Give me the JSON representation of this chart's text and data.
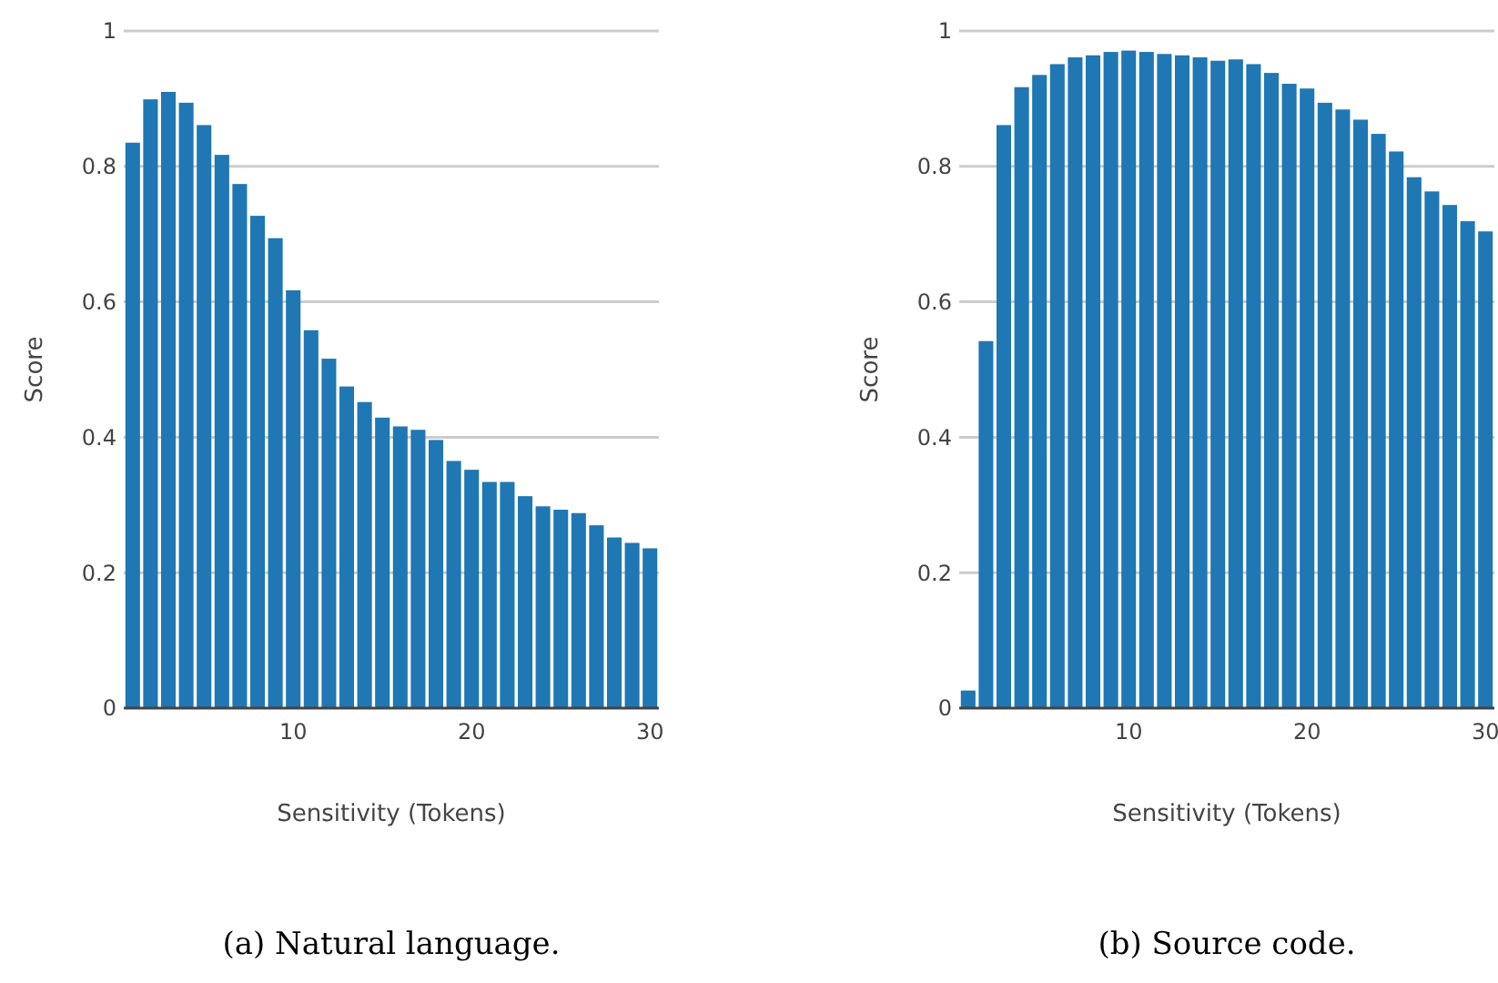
{
  "chart_data": [
    {
      "type": "bar",
      "xlabel": "Sensitivity (Tokens)",
      "ylabel": "Score",
      "x": [
        1,
        2,
        3,
        4,
        5,
        6,
        7,
        8,
        9,
        10,
        11,
        12,
        13,
        14,
        15,
        16,
        17,
        18,
        19,
        20,
        21,
        22,
        23,
        24,
        25,
        26,
        27,
        28,
        29,
        30
      ],
      "values": [
        0.835,
        0.899,
        0.91,
        0.894,
        0.861,
        0.817,
        0.774,
        0.727,
        0.694,
        0.617,
        0.558,
        0.516,
        0.475,
        0.452,
        0.429,
        0.416,
        0.411,
        0.396,
        0.365,
        0.352,
        0.334,
        0.334,
        0.313,
        0.298,
        0.293,
        0.288,
        0.27,
        0.252,
        0.244,
        0.236
      ],
      "color": "#1f77b4",
      "xlim": [
        0.5,
        30.5
      ],
      "xticks": [
        10,
        20,
        30
      ],
      "ylim": [
        0,
        1
      ],
      "yticks": [
        0,
        0.2,
        0.4,
        0.6,
        0.8,
        1
      ],
      "grid": "y",
      "annotations": [
        "(a) Natural language."
      ]
    },
    {
      "type": "bar",
      "xlabel": "Sensitivity (Tokens)",
      "ylabel": "Score",
      "x": [
        1,
        2,
        3,
        4,
        5,
        6,
        7,
        8,
        9,
        10,
        11,
        12,
        13,
        14,
        15,
        16,
        17,
        18,
        19,
        20,
        21,
        22,
        23,
        24,
        25,
        26,
        27,
        28,
        29,
        30
      ],
      "values": [
        0.026,
        0.542,
        0.861,
        0.917,
        0.935,
        0.951,
        0.961,
        0.964,
        0.969,
        0.971,
        0.969,
        0.966,
        0.964,
        0.961,
        0.956,
        0.958,
        0.951,
        0.938,
        0.922,
        0.915,
        0.894,
        0.884,
        0.869,
        0.848,
        0.822,
        0.784,
        0.763,
        0.743,
        0.719,
        0.704
      ],
      "color": "#1f77b4",
      "xlim": [
        0.5,
        30.5
      ],
      "xticks": [
        10,
        20,
        30
      ],
      "ylim": [
        0,
        1
      ],
      "yticks": [
        0,
        0.2,
        0.4,
        0.6,
        0.8,
        1
      ],
      "grid": "y",
      "annotations": [
        "(b) Source code."
      ]
    }
  ]
}
